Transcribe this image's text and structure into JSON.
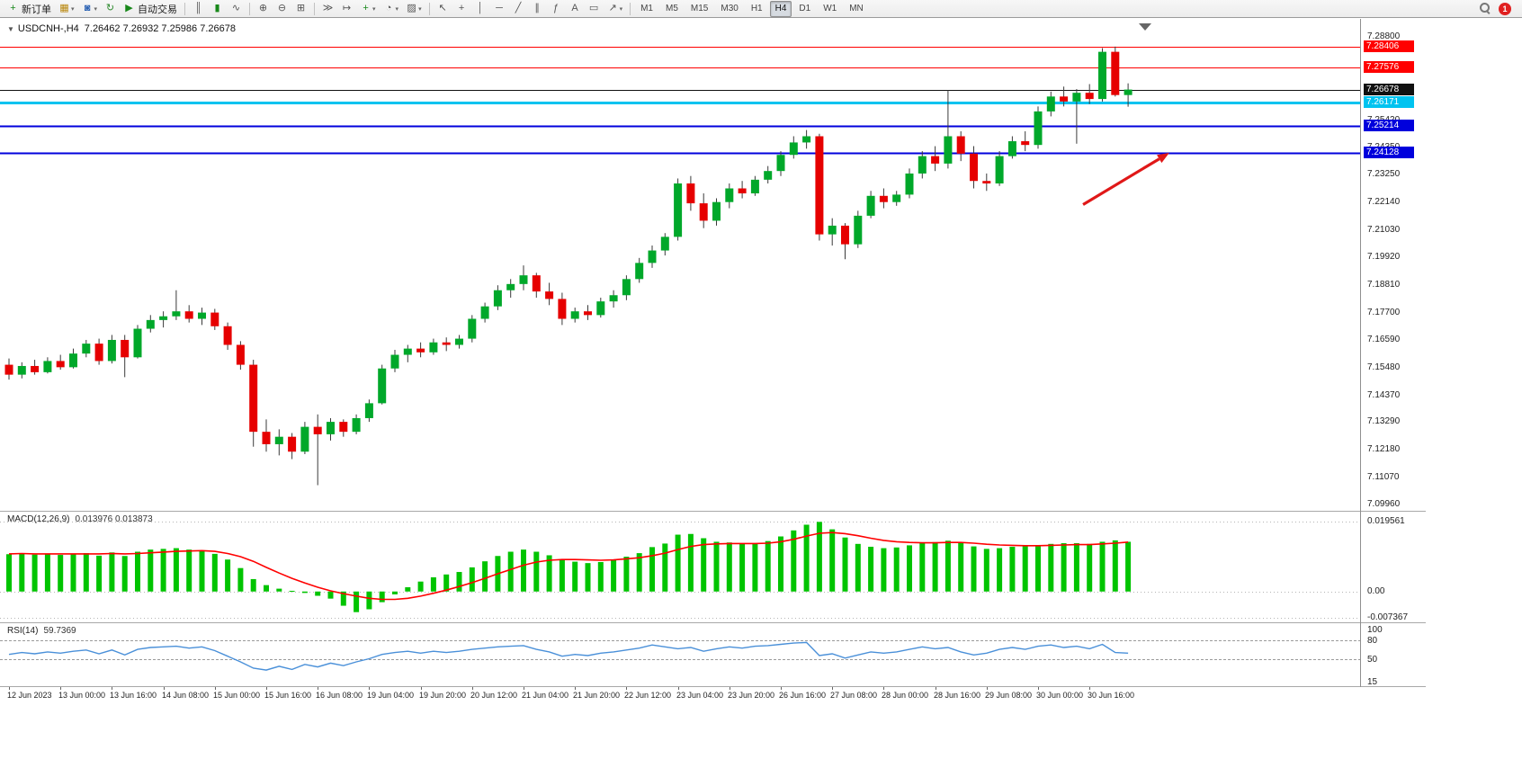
{
  "toolbar": {
    "groups": [
      [
        {
          "name": "new-order",
          "glyph": "+",
          "color": "#18881a",
          "label": "新订单"
        },
        {
          "name": "new-chart",
          "glyph": "▦",
          "color": "#b8860b",
          "caret": true
        },
        {
          "name": "profiles",
          "glyph": "◙",
          "color": "#2e64b5",
          "caret": true
        },
        {
          "name": "refresh",
          "glyph": "↻",
          "color": "#2e8b2e"
        },
        {
          "name": "autotrading",
          "glyph": "▶",
          "color": "#18881a",
          "label": "自动交易"
        }
      ],
      [
        {
          "name": "bars-chart",
          "glyph": "║"
        },
        {
          "name": "candles-chart",
          "glyph": "▮",
          "color": "#18881a"
        },
        {
          "name": "line-chart",
          "glyph": "∿"
        }
      ],
      [
        {
          "name": "zoom-in",
          "glyph": "⊕"
        },
        {
          "name": "zoom-out",
          "glyph": "⊖"
        },
        {
          "name": "tile-windows",
          "glyph": "⊞"
        }
      ],
      [
        {
          "name": "auto-scroll",
          "glyph": "≫"
        },
        {
          "name": "chart-shift",
          "glyph": "↦"
        },
        {
          "name": "indicators",
          "glyph": "+",
          "color": "#18881a",
          "caret": true
        },
        {
          "name": "periods",
          "glyph": "◔",
          "caret": true
        },
        {
          "name": "templates",
          "glyph": "▨",
          "caret": true
        }
      ],
      [
        {
          "name": "cursor",
          "glyph": "↖"
        },
        {
          "name": "crosshair",
          "glyph": "+"
        },
        {
          "name": "vertical-line",
          "glyph": "│"
        },
        {
          "name": "horizontal-line",
          "glyph": "─"
        },
        {
          "name": "trendline",
          "glyph": "╱"
        },
        {
          "name": "channel",
          "glyph": "∥"
        },
        {
          "name": "fibonacci",
          "glyph": "ƒ"
        },
        {
          "name": "text",
          "glyph": "A"
        },
        {
          "name": "text-label",
          "glyph": "▭"
        },
        {
          "name": "arrows",
          "glyph": "↗",
          "caret": true
        }
      ]
    ],
    "timeframes": [
      "M1",
      "M5",
      "M15",
      "M30",
      "H1",
      "H4",
      "D1",
      "W1",
      "MN"
    ],
    "active_timeframe": "H4",
    "badge_count": "1"
  },
  "chart_header": {
    "collapse_icon": "▼",
    "symbol": "USDCNH-,H4",
    "ohlc": "7.26462 7.26932 7.25986 7.26678"
  },
  "chart_data": [
    {
      "type": "candlestick",
      "title": "USDCNH-,H4",
      "ohlc_display": {
        "open": "7.26462",
        "high": "7.26932",
        "low": "7.25986",
        "close": "7.26678"
      },
      "ylim": [
        7.099,
        7.292
      ],
      "colors": {
        "up": "#00a82a",
        "down": "#e60000",
        "wick": "#3a3a3a"
      },
      "candles": [
        [
          7.156,
          7.1585,
          7.15,
          7.152
        ],
        [
          7.152,
          7.157,
          7.1505,
          7.1555
        ],
        [
          7.1555,
          7.158,
          7.152,
          7.153
        ],
        [
          7.153,
          7.159,
          7.1525,
          7.1575
        ],
        [
          7.1575,
          7.16,
          7.154,
          7.155
        ],
        [
          7.155,
          7.1625,
          7.1545,
          7.1605
        ],
        [
          7.1605,
          7.166,
          7.159,
          7.1645
        ],
        [
          7.1645,
          7.1665,
          7.156,
          7.1575
        ],
        [
          7.1575,
          7.168,
          7.1565,
          7.166
        ],
        [
          7.166,
          7.168,
          7.151,
          7.159
        ],
        [
          7.159,
          7.172,
          7.1585,
          7.1705
        ],
        [
          7.1705,
          7.176,
          7.169,
          7.174
        ],
        [
          7.174,
          7.1775,
          7.171,
          7.1755
        ],
        [
          7.1755,
          7.186,
          7.174,
          7.1775
        ],
        [
          7.1775,
          7.18,
          7.173,
          7.1745
        ],
        [
          7.1745,
          7.179,
          7.172,
          7.177
        ],
        [
          7.177,
          7.1785,
          7.17,
          7.1715
        ],
        [
          7.1715,
          7.173,
          7.162,
          7.164
        ],
        [
          7.164,
          7.1655,
          7.154,
          7.156
        ],
        [
          7.156,
          7.158,
          7.123,
          7.129
        ],
        [
          7.129,
          7.134,
          7.121,
          7.124
        ],
        [
          7.124,
          7.13,
          7.1195,
          7.127
        ],
        [
          7.127,
          7.1285,
          7.118,
          7.121
        ],
        [
          7.121,
          7.133,
          7.12,
          7.131
        ],
        [
          7.131,
          7.136,
          7.1075,
          7.128
        ],
        [
          7.128,
          7.1345,
          7.1255,
          7.133
        ],
        [
          7.133,
          7.134,
          7.127,
          7.129
        ],
        [
          7.129,
          7.136,
          7.128,
          7.1345
        ],
        [
          7.1345,
          7.142,
          7.133,
          7.1405
        ],
        [
          7.1405,
          7.156,
          7.14,
          7.1545
        ],
        [
          7.1545,
          7.162,
          7.153,
          7.16
        ],
        [
          7.16,
          7.164,
          7.157,
          7.1625
        ],
        [
          7.1625,
          7.165,
          7.159,
          7.161
        ],
        [
          7.161,
          7.1665,
          7.16,
          7.165
        ],
        [
          7.165,
          7.167,
          7.1615,
          7.164
        ],
        [
          7.164,
          7.168,
          7.1625,
          7.1665
        ],
        [
          7.1665,
          7.176,
          7.165,
          7.1745
        ],
        [
          7.1745,
          7.181,
          7.173,
          7.1795
        ],
        [
          7.1795,
          7.188,
          7.178,
          7.186
        ],
        [
          7.186,
          7.1905,
          7.183,
          7.1885
        ],
        [
          7.1885,
          7.196,
          7.186,
          7.192
        ],
        [
          7.192,
          7.193,
          7.183,
          7.1855
        ],
        [
          7.1855,
          7.189,
          7.18,
          7.1825
        ],
        [
          7.1825,
          7.185,
          7.172,
          7.1745
        ],
        [
          7.1745,
          7.179,
          7.173,
          7.1775
        ],
        [
          7.1775,
          7.18,
          7.174,
          7.176
        ],
        [
          7.176,
          7.183,
          7.175,
          7.1815
        ],
        [
          7.1815,
          7.186,
          7.179,
          7.184
        ],
        [
          7.184,
          7.192,
          7.182,
          7.1905
        ],
        [
          7.1905,
          7.199,
          7.189,
          7.197
        ],
        [
          7.197,
          7.204,
          7.195,
          7.202
        ],
        [
          7.202,
          7.209,
          7.2,
          7.2075
        ],
        [
          7.2075,
          7.231,
          7.206,
          7.229
        ],
        [
          7.229,
          7.232,
          7.218,
          7.221
        ],
        [
          7.221,
          7.225,
          7.211,
          7.214
        ],
        [
          7.214,
          7.223,
          7.212,
          7.2215
        ],
        [
          7.2215,
          7.229,
          7.219,
          7.227
        ],
        [
          7.227,
          7.23,
          7.223,
          7.225
        ],
        [
          7.225,
          7.232,
          7.224,
          7.2305
        ],
        [
          7.2305,
          7.236,
          7.229,
          7.234
        ],
        [
          7.234,
          7.242,
          7.232,
          7.2405
        ],
        [
          7.2405,
          7.248,
          7.239,
          7.2455
        ],
        [
          7.2455,
          7.2505,
          7.243,
          7.248
        ],
        [
          7.248,
          7.249,
          7.206,
          7.2085
        ],
        [
          7.2085,
          7.215,
          7.204,
          7.212
        ],
        [
          7.212,
          7.213,
          7.1985,
          7.2045
        ],
        [
          7.2045,
          7.218,
          7.203,
          7.216
        ],
        [
          7.216,
          7.226,
          7.215,
          7.224
        ],
        [
          7.224,
          7.227,
          7.219,
          7.2215
        ],
        [
          7.2215,
          7.226,
          7.22,
          7.2245
        ],
        [
          7.2245,
          7.235,
          7.223,
          7.233
        ],
        [
          7.233,
          7.242,
          7.231,
          7.24
        ],
        [
          7.24,
          7.244,
          7.234,
          7.237
        ],
        [
          7.237,
          7.2665,
          7.235,
          7.248
        ],
        [
          7.248,
          7.25,
          7.238,
          7.241
        ],
        [
          7.241,
          7.244,
          7.227,
          7.23
        ],
        [
          7.23,
          7.233,
          7.226,
          7.229
        ],
        [
          7.229,
          7.242,
          7.228,
          7.24
        ],
        [
          7.24,
          7.248,
          7.239,
          7.246
        ],
        [
          7.246,
          7.25,
          7.242,
          7.2445
        ],
        [
          7.2445,
          7.26,
          7.243,
          7.258
        ],
        [
          7.258,
          7.266,
          7.256,
          7.264
        ],
        [
          7.264,
          7.268,
          7.26,
          7.262
        ],
        [
          7.262,
          7.267,
          7.245,
          7.2655
        ],
        [
          7.2655,
          7.269,
          7.261,
          7.263
        ],
        [
          7.263,
          7.2835,
          7.262,
          7.282
        ],
        [
          7.282,
          7.2841,
          7.264,
          7.2646
        ],
        [
          7.2646,
          7.2693,
          7.2599,
          7.2668
        ]
      ],
      "x_labels": [
        "12 Jun 2023",
        "13 Jun 00:00",
        "13 Jun 16:00",
        "14 Jun 08:00",
        "15 Jun 00:00",
        "15 Jun 16:00",
        "16 Jun 08:00",
        "19 Jun 04:00",
        "19 Jun 20:00",
        "20 Jun 12:00",
        "21 Jun 04:00",
        "21 Jun 20:00",
        "22 Jun 12:00",
        "23 Jun 04:00",
        "23 Jun 20:00",
        "26 Jun 16:00",
        "27 Jun 08:00",
        "28 Jun 00:00",
        "28 Jun 16:00",
        "29 Jun 08:00",
        "30 Jun 00:00",
        "30 Jun 16:00"
      ],
      "levels": [
        {
          "value": 7.28406,
          "label": "7.28406",
          "color": "#ff0000",
          "width": 1
        },
        {
          "value": 7.27576,
          "label": "7.27576",
          "color": "#ff0000",
          "width": 1
        },
        {
          "value": 7.26678,
          "label": "7.26678",
          "color": "#111111",
          "width": 1,
          "role": "current-price"
        },
        {
          "value": 7.26171,
          "label": "7.26171",
          "color": "#00c3f0",
          "width": 3
        },
        {
          "value": 7.25214,
          "label": "7.25214",
          "color": "#0000dc",
          "width": 2
        },
        {
          "value": 7.24128,
          "label": "7.24128",
          "color": "#0000dc",
          "width": 2
        }
      ],
      "scale_labels": [
        {
          "text": "7.28800",
          "value": 7.288
        },
        {
          "text": "7.25420",
          "value": 7.2542
        },
        {
          "text": "7.24350",
          "value": 7.2435
        },
        {
          "text": "7.23250",
          "value": 7.2325
        },
        {
          "text": "7.22140",
          "value": 7.2214
        },
        {
          "text": "7.21030",
          "value": 7.2103
        },
        {
          "text": "7.19920",
          "value": 7.1992
        },
        {
          "text": "7.18810",
          "value": 7.1881
        },
        {
          "text": "7.17700",
          "value": 7.177
        },
        {
          "text": "7.16590",
          "value": 7.1659
        },
        {
          "text": "7.15480",
          "value": 7.1548
        },
        {
          "text": "7.14370",
          "value": 7.1437
        },
        {
          "text": "7.13290",
          "value": 7.1329
        },
        {
          "text": "7.12180",
          "value": 7.1218
        },
        {
          "text": "7.11070",
          "value": 7.1107
        },
        {
          "text": "7.09960",
          "value": 7.0996
        }
      ],
      "annotation_arrow": {
        "x1_index": 83.5,
        "y1_price": 7.2205,
        "x2_index": 90.2,
        "y2_price": 7.2413,
        "color": "#e01818",
        "width": 3.2
      }
    },
    {
      "type": "macd",
      "name": "MACD(12,26,9)",
      "values_text": "0.013976 0.013873",
      "ylim": [
        -0.0074,
        0.0212
      ],
      "colors": {
        "histogram": "#00c400",
        "signal": "#ff0000"
      },
      "histogram": [
        0.0105,
        0.0108,
        0.0104,
        0.0107,
        0.0103,
        0.0106,
        0.0108,
        0.0101,
        0.011,
        0.01,
        0.0112,
        0.0118,
        0.012,
        0.0122,
        0.0118,
        0.0116,
        0.0106,
        0.009,
        0.0066,
        0.0035,
        0.0018,
        0.0008,
        0.0002,
        -0.0004,
        -0.0012,
        -0.002,
        -0.004,
        -0.0058,
        -0.005,
        -0.003,
        -0.0008,
        0.0012,
        0.0028,
        0.004,
        0.0048,
        0.0055,
        0.0068,
        0.0085,
        0.01,
        0.0112,
        0.0118,
        0.0112,
        0.0102,
        0.009,
        0.0084,
        0.008,
        0.0083,
        0.009,
        0.0098,
        0.0108,
        0.0125,
        0.0135,
        0.016,
        0.0162,
        0.015,
        0.014,
        0.0138,
        0.0134,
        0.0136,
        0.0142,
        0.0155,
        0.0172,
        0.0188,
        0.0196,
        0.0175,
        0.0152,
        0.0134,
        0.0126,
        0.0122,
        0.0124,
        0.013,
        0.0136,
        0.0139,
        0.0143,
        0.0137,
        0.0127,
        0.012,
        0.0122,
        0.0126,
        0.0128,
        0.0131,
        0.0134,
        0.0136,
        0.0136,
        0.0134,
        0.014,
        0.0144,
        0.014
      ],
      "signal": [
        0.0106,
        0.0107,
        0.0106,
        0.0106,
        0.0106,
        0.0106,
        0.0106,
        0.0106,
        0.0107,
        0.0106,
        0.0107,
        0.0109,
        0.0111,
        0.0113,
        0.0114,
        0.0115,
        0.0113,
        0.0107,
        0.0098,
        0.0085,
        0.0068,
        0.0052,
        0.0037,
        0.0024,
        0.0012,
        0.0002,
        -0.0006,
        -0.0013,
        -0.0019,
        -0.0022,
        -0.0022,
        -0.0019,
        -0.0013,
        -0.0005,
        0.0004,
        0.0014,
        0.0025,
        0.0037,
        0.005,
        0.0062,
        0.0074,
        0.0083,
        0.0088,
        0.009,
        0.009,
        0.0089,
        0.0088,
        0.0089,
        0.0092,
        0.0095,
        0.0101,
        0.0108,
        0.0118,
        0.0127,
        0.0132,
        0.0134,
        0.0135,
        0.0135,
        0.0135,
        0.0136,
        0.014,
        0.0147,
        0.0156,
        0.0164,
        0.0166,
        0.0163,
        0.0157,
        0.015,
        0.0144,
        0.014,
        0.0138,
        0.0137,
        0.0137,
        0.0138,
        0.0138,
        0.0136,
        0.0133,
        0.0131,
        0.013,
        0.0129,
        0.0129,
        0.013,
        0.0131,
        0.0132,
        0.0132,
        0.0134,
        0.0136,
        0.0139
      ],
      "scale_labels": [
        {
          "text": "0.019561",
          "value": 0.019561
        },
        {
          "text": "0.00",
          "value": 0
        },
        {
          "text": "-0.007367",
          "value": -0.007367
        }
      ]
    },
    {
      "type": "rsi",
      "name": "RSI(14)",
      "value_text": "59.7369",
      "ylim": [
        13,
        102
      ],
      "colors": {
        "line": "#4a90d9"
      },
      "levels": [
        80,
        50
      ],
      "values": [
        58,
        61,
        59,
        62,
        60,
        63,
        65,
        59,
        65,
        57,
        66,
        69,
        70,
        71,
        68,
        70,
        64,
        55,
        46,
        36,
        33,
        39,
        34,
        42,
        38,
        44,
        40,
        46,
        51,
        58,
        61,
        63,
        60,
        63,
        61,
        63,
        66,
        68,
        70,
        71,
        72,
        66,
        62,
        55,
        58,
        56,
        60,
        62,
        65,
        68,
        73,
        70,
        67,
        69,
        63,
        67,
        70,
        68,
        71,
        72,
        74,
        76,
        77,
        56,
        59,
        52,
        57,
        62,
        60,
        62,
        66,
        70,
        67,
        69,
        62,
        57,
        60,
        66,
        69,
        66,
        71,
        73,
        69,
        71,
        67,
        74,
        61,
        60
      ],
      "scale_labels": [
        {
          "text": "100",
          "value": 100
        },
        {
          "text": "80",
          "value": 80
        },
        {
          "text": "50",
          "value": 50
        },
        {
          "text": "15",
          "value": 15
        }
      ]
    }
  ]
}
